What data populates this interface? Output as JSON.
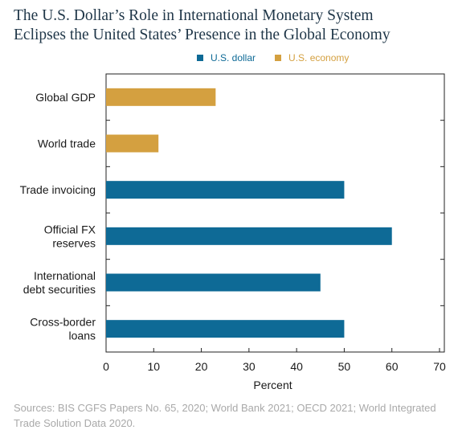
{
  "title_lines": [
    "The U.S. Dollar’s Role in International Monetary System",
    "Eclipses the United States’ Presence in the Global Economy"
  ],
  "legend": [
    {
      "label": "U.S. dollar",
      "color": "#0e6a96"
    },
    {
      "label": "U.S. economy",
      "color": "#d4a040"
    }
  ],
  "source_lines": [
    "Sources: BIS CGFS Papers No. 65, 2020; World Bank 2021; OECD 2021; World Integrated",
    "Trade Solution Data 2020."
  ],
  "chart_data": {
    "type": "bar",
    "orientation": "horizontal",
    "categories": [
      {
        "lines": [
          "Global GDP"
        ],
        "value": 23,
        "series": "U.S. economy"
      },
      {
        "lines": [
          "World trade"
        ],
        "value": 11,
        "series": "U.S. economy"
      },
      {
        "lines": [
          "Trade invoicing"
        ],
        "value": 50,
        "series": "U.S. dollar"
      },
      {
        "lines": [
          "Official FX",
          "reserves"
        ],
        "value": 60,
        "series": "U.S. dollar"
      },
      {
        "lines": [
          "International",
          "debt securities"
        ],
        "value": 45,
        "series": "U.S. dollar"
      },
      {
        "lines": [
          "Cross-border",
          "loans"
        ],
        "value": 50,
        "series": "U.S. dollar"
      }
    ],
    "xlabel": "Percent",
    "xlim": [
      0,
      70
    ],
    "xticks": [
      "0",
      "10",
      "20",
      "30",
      "40",
      "50",
      "60",
      "70"
    ],
    "grid": false,
    "legend_position": "top"
  }
}
